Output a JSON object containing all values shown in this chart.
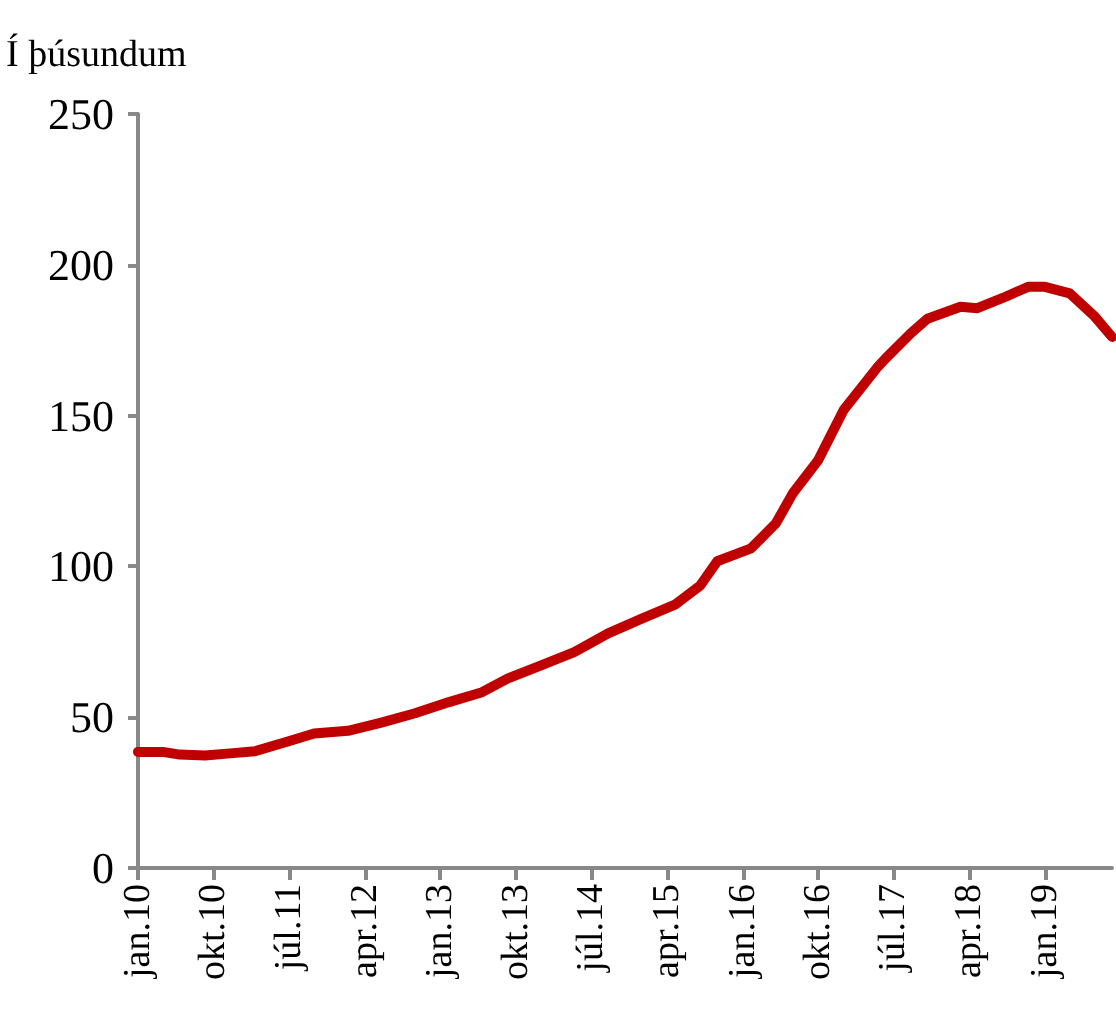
{
  "chart_data": {
    "type": "line",
    "ylabel": "Í þúsundum",
    "x": [
      "2010-01",
      "2010-04",
      "2010-06",
      "2010-09",
      "2010-12",
      "2011-03",
      "2011-07",
      "2011-10",
      "2012-02",
      "2012-06",
      "2012-10",
      "2013-02",
      "2013-06",
      "2013-09",
      "2014-01",
      "2014-05",
      "2014-09",
      "2015-01",
      "2015-05",
      "2015-08",
      "2015-10",
      "2016-02",
      "2016-05",
      "2016-07",
      "2016-10",
      "2017-01",
      "2017-05",
      "2017-06",
      "2017-09",
      "2017-11",
      "2018-03",
      "2018-05",
      "2018-08",
      "2018-11",
      "2019-01",
      "2019-04",
      "2019-07",
      "2019-09"
    ],
    "series": [
      {
        "color": "#c00000",
        "values": [
          38.5,
          38.5,
          37.6,
          37.3,
          38,
          38.7,
          42,
          44.6,
          45.5,
          48.2,
          51.3,
          55,
          58.3,
          62.8,
          67.2,
          71.6,
          77.8,
          82.7,
          87.3,
          93.7,
          101.7,
          106,
          114.3,
          124.2,
          135.2,
          151.8,
          165.7,
          168.8,
          177.2,
          182.1,
          186.1,
          185.6,
          189,
          192.7,
          192.7,
          190.5,
          182.8,
          176.1
        ]
      }
    ],
    "xlim": [
      "2010-01",
      "2019-09"
    ],
    "xticks": [
      {
        "value": "2010-01",
        "label": "jan.10"
      },
      {
        "value": "2010-10",
        "label": "okt.10"
      },
      {
        "value": "2011-07",
        "label": "júl.11"
      },
      {
        "value": "2012-04",
        "label": "apr.12"
      },
      {
        "value": "2013-01",
        "label": "jan.13"
      },
      {
        "value": "2013-10",
        "label": "okt.13"
      },
      {
        "value": "2014-07",
        "label": "júl.14"
      },
      {
        "value": "2015-04",
        "label": "apr.15"
      },
      {
        "value": "2016-01",
        "label": "jan.16"
      },
      {
        "value": "2016-10",
        "label": "okt.16"
      },
      {
        "value": "2017-07",
        "label": "júl.17"
      },
      {
        "value": "2018-04",
        "label": "apr.18"
      },
      {
        "value": "2019-01",
        "label": "jan.19"
      }
    ],
    "ylim": [
      0,
      250
    ],
    "yticks": [
      0,
      50,
      100,
      150,
      200,
      250
    ],
    "grid": false,
    "marker": "none",
    "line_style": "solid"
  }
}
